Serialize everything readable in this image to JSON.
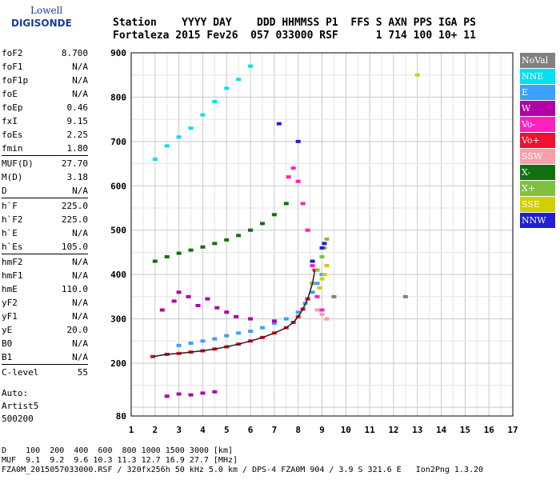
{
  "logo": {
    "line1": "Lowell",
    "line2": "DIGISONDE"
  },
  "header": {
    "line1": "Station    YYYY DAY    DDD HHMMSS P1  FFS S AXN PPS IGA PS",
    "line2": "Fortaleza 2015 Fev26  057 033000 RSF      1 714 100 10+ 11"
  },
  "params": [
    {
      "label": "foF2",
      "value": "8.700"
    },
    {
      "label": "foF1",
      "value": "N/A"
    },
    {
      "label": "foF1p",
      "value": "N/A"
    },
    {
      "label": "foE",
      "value": "N/A"
    },
    {
      "label": "foEp",
      "value": "0.46"
    },
    {
      "label": "fxI",
      "value": "9.15"
    },
    {
      "label": "foEs",
      "value": "2.25"
    },
    {
      "label": "fmin",
      "value": "1.80"
    },
    {
      "label": "MUF(D)",
      "value": "27.70"
    },
    {
      "label": "M(D)",
      "value": "3.18"
    },
    {
      "label": "D",
      "value": "N/A"
    },
    {
      "label": "h`F",
      "value": "225.0"
    },
    {
      "label": "h`F2",
      "value": "225.0"
    },
    {
      "label": "h`E",
      "value": "N/A"
    },
    {
      "label": "h`Es",
      "value": "105.0"
    },
    {
      "label": "hmF2",
      "value": "N/A"
    },
    {
      "label": "hmF1",
      "value": "N/A"
    },
    {
      "label": "hmE",
      "value": "110.0"
    },
    {
      "label": "yF2",
      "value": "N/A"
    },
    {
      "label": "yF1",
      "value": "N/A"
    },
    {
      "label": "yE",
      "value": "20.0"
    },
    {
      "label": "B0",
      "value": "N/A"
    },
    {
      "label": "B1",
      "value": "N/A"
    },
    {
      "label": "C-level",
      "value": "55"
    }
  ],
  "auto": {
    "line1": "Auto:",
    "line2": "Artist5",
    "line3": "500200"
  },
  "legend": [
    {
      "label": "NoVal",
      "color": "#808080"
    },
    {
      "label": "NNE",
      "color": "#00e0f0"
    },
    {
      "label": "E",
      "color": "#3aa0ff"
    },
    {
      "label": "W",
      "color": "#b000a8"
    },
    {
      "label": "Vo-",
      "color": "#ff20c0"
    },
    {
      "label": "Vo+",
      "color": "#f01030"
    },
    {
      "label": "SSW",
      "color": "#f8a0a8"
    },
    {
      "label": "X-",
      "color": "#107010"
    },
    {
      "label": "X+",
      "color": "#80c040"
    },
    {
      "label": "SSE",
      "color": "#d0d000"
    },
    {
      "label": "NNW",
      "color": "#2020d0"
    }
  ],
  "footer": {
    "line1": "D    100  200  400  600  800 1000 1500 3000 [km]",
    "line2": "MUF  9.1  9.2  9.6 10.3 11.3 12.7 16.9 27.7 [MHz]",
    "line3": "FZA0M_2015057033000.RSF / 320fx256h 50 kHz 5.0 km / DPS-4 FZA0M 904 / 3.9 S 321.6 E   Ion2Png 1.3.20"
  },
  "chart_data": {
    "type": "scatter",
    "title": "",
    "xlabel": "",
    "ylabel": "",
    "xlim": [
      1,
      17
    ],
    "ylim": [
      80,
      900
    ],
    "x_ticks": [
      1,
      2,
      3,
      4,
      5,
      6,
      7,
      8,
      9,
      10,
      11,
      12,
      13,
      14,
      15,
      16,
      17
    ],
    "y_ticks": [
      80,
      200,
      300,
      400,
      500,
      600,
      700,
      800,
      900
    ],
    "grid": true,
    "legend_position": "right",
    "series": [
      {
        "name": "Vo+",
        "color": "#f01030",
        "x": [
          1.9,
          2.5,
          3.0,
          3.5,
          4.0,
          4.5,
          5.0,
          5.5,
          6.0,
          6.5,
          7.0,
          7.5,
          7.8,
          8.0,
          8.2,
          8.4,
          8.6,
          8.7
        ],
        "y": [
          215,
          220,
          222,
          225,
          228,
          232,
          237,
          243,
          250,
          258,
          268,
          280,
          292,
          305,
          322,
          345,
          380,
          410
        ]
      },
      {
        "name": "E",
        "color": "#3aa0ff",
        "x": [
          3.0,
          3.5,
          4.0,
          4.5,
          5.0,
          5.5,
          6.0,
          6.5,
          7.0,
          7.5,
          8.0,
          8.3,
          8.6,
          8.8,
          9.0,
          9.2
        ],
        "y": [
          240,
          245,
          250,
          255,
          262,
          268,
          272,
          280,
          290,
          300,
          315,
          335,
          360,
          380,
          400,
          420
        ]
      },
      {
        "name": "W",
        "color": "#b000a8",
        "x": [
          2.3,
          2.8,
          3.0,
          3.4,
          3.8,
          4.2,
          4.6,
          5.0,
          5.4,
          6.0,
          7.0,
          2.5,
          3.0,
          3.5,
          4.0,
          4.5
        ],
        "y": [
          320,
          340,
          360,
          350,
          330,
          345,
          325,
          315,
          305,
          300,
          295,
          125,
          130,
          128,
          132,
          135
        ]
      },
      {
        "name": "Vo-",
        "color": "#ff20c0",
        "x": [
          7.6,
          7.8,
          8.0,
          8.2,
          8.4,
          8.6,
          8.8,
          9.0,
          9.2
        ],
        "y": [
          620,
          640,
          610,
          560,
          500,
          420,
          350,
          320,
          300
        ]
      },
      {
        "name": "NNE",
        "color": "#00e0f0",
        "x": [
          2.0,
          2.5,
          3.0,
          3.5,
          4.0,
          4.5,
          5.0,
          5.5,
          6.0
        ],
        "y": [
          660,
          690,
          710,
          730,
          760,
          790,
          820,
          840,
          870
        ]
      },
      {
        "name": "X-",
        "color": "#107010",
        "x": [
          2.0,
          2.5,
          3.0,
          3.5,
          4.0,
          4.5,
          5.0,
          5.5,
          6.0,
          6.5,
          7.0,
          7.5
        ],
        "y": [
          430,
          440,
          448,
          455,
          462,
          470,
          478,
          488,
          500,
          515,
          535,
          560
        ]
      },
      {
        "name": "X+",
        "color": "#80c040",
        "x": [
          8.6,
          8.8,
          9.0,
          9.1,
          9.2
        ],
        "y": [
          380,
          410,
          440,
          460,
          480
        ]
      },
      {
        "name": "SSE",
        "color": "#d0d000",
        "x": [
          8.9,
          9.0,
          9.1,
          9.2,
          13.0
        ],
        "y": [
          370,
          390,
          400,
          420,
          850
        ]
      },
      {
        "name": "NNW",
        "color": "#2020d0",
        "x": [
          7.2,
          8.0,
          8.6,
          9.0,
          9.1
        ],
        "y": [
          740,
          700,
          430,
          460,
          470
        ]
      },
      {
        "name": "SSW",
        "color": "#f8a0a8",
        "x": [
          8.8,
          9.0,
          9.2
        ],
        "y": [
          320,
          310,
          300
        ]
      },
      {
        "name": "NoVal",
        "color": "#808080",
        "x": [
          9.5,
          12.5
        ],
        "y": [
          350,
          350
        ]
      }
    ]
  }
}
